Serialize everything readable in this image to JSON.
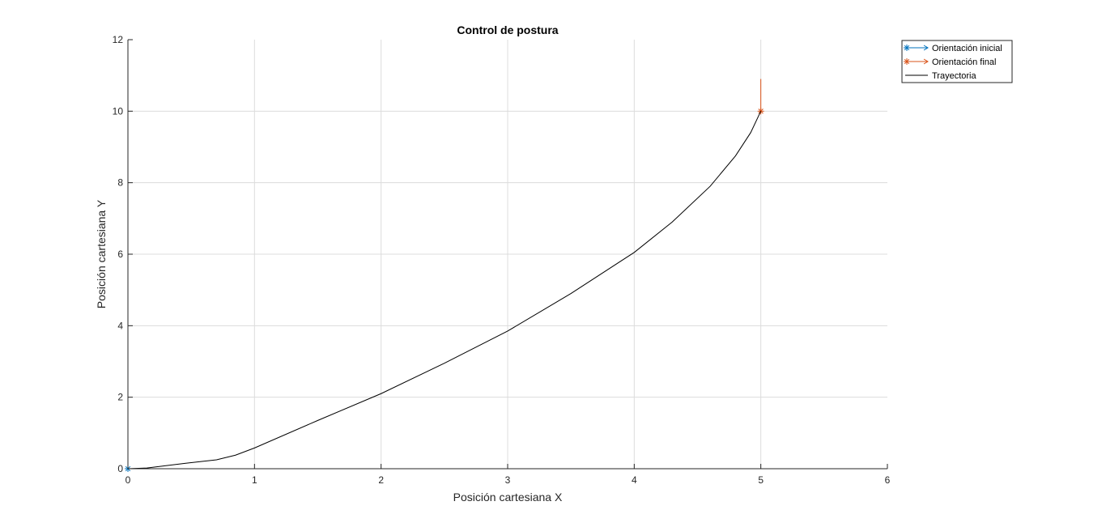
{
  "chart_data": {
    "type": "line",
    "title": "Control de postura",
    "xlabel": "Posición cartesiana X",
    "ylabel": "Posición cartesiana Y",
    "xlim": [
      0,
      6
    ],
    "ylim": [
      0,
      12
    ],
    "xticks": [
      0,
      1,
      2,
      3,
      4,
      5,
      6
    ],
    "yticks": [
      0,
      2,
      4,
      6,
      8,
      10,
      12
    ],
    "grid": true,
    "legend_position": "outside top-right",
    "series": [
      {
        "name": "Orientación inicial",
        "kind": "quiver",
        "color": "#0072BD",
        "marker": "*",
        "origin": [
          0,
          0
        ],
        "vector": [
          0.9,
          0
        ]
      },
      {
        "name": "Orientación final",
        "kind": "quiver",
        "color": "#D95319",
        "marker": "*",
        "origin": [
          5,
          10
        ],
        "vector": [
          0,
          0.9
        ]
      },
      {
        "name": "Trayectoria",
        "kind": "line",
        "color": "#000000",
        "x": [
          0,
          0.15,
          0.45,
          0.7,
          0.85,
          1.0,
          1.5,
          2.0,
          2.5,
          3.0,
          3.5,
          4.0,
          4.3,
          4.6,
          4.8,
          4.92,
          4.98,
          5.0
        ],
        "y": [
          0,
          0.02,
          0.15,
          0.25,
          0.38,
          0.58,
          1.35,
          2.1,
          2.95,
          3.85,
          4.9,
          6.05,
          6.9,
          7.9,
          8.75,
          9.4,
          9.85,
          10.0
        ]
      }
    ]
  }
}
